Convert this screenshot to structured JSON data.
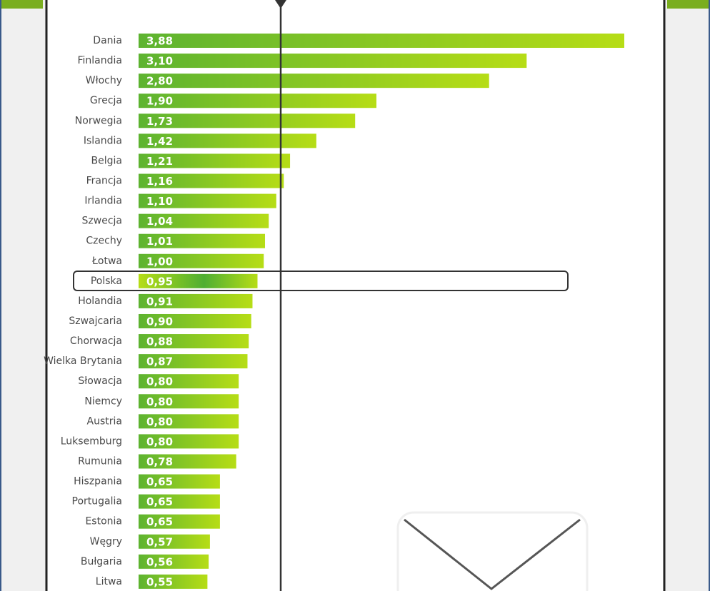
{
  "chart_data": {
    "type": "bar",
    "orientation": "horizontal",
    "categories": [
      "Dania",
      "Finlandia",
      "Włochy",
      "Grecja",
      "Norwegia",
      "Islandia",
      "Belgia",
      "Francja",
      "Irlandia",
      "Szwecja",
      "Czechy",
      "Łotwa",
      "Polska",
      "Holandia",
      "Szwajcaria",
      "Chorwacja",
      "Wielka Brytania",
      "Słowacja",
      "Niemcy",
      "Austria",
      "Luksemburg",
      "Rumunia",
      "Hiszpania",
      "Portugalia",
      "Estonia",
      "Węgry",
      "Bułgaria",
      "Litwa"
    ],
    "values": [
      3.88,
      3.1,
      2.8,
      1.9,
      1.73,
      1.42,
      1.21,
      1.16,
      1.1,
      1.04,
      1.01,
      1.0,
      0.95,
      0.91,
      0.9,
      0.88,
      0.87,
      0.8,
      0.8,
      0.8,
      0.8,
      0.78,
      0.65,
      0.65,
      0.65,
      0.57,
      0.56,
      0.55
    ],
    "value_labels": [
      "3,88",
      "3,10",
      "2,80",
      "1,90",
      "1,73",
      "1,42",
      "1,21",
      "1,16",
      "1,10",
      "1,04",
      "1,01",
      "1,00",
      "0,95",
      "0,91",
      "0,90",
      "0,88",
      "0,87",
      "0,80",
      "0,80",
      "0,80",
      "0,80",
      "0,78",
      "0,65",
      "0,65",
      "0,65",
      "0,57",
      "0,56",
      "0,55"
    ],
    "gradient": [
      "#5db330",
      "#b6dd16"
    ],
    "highlight_index": 12
  }
}
